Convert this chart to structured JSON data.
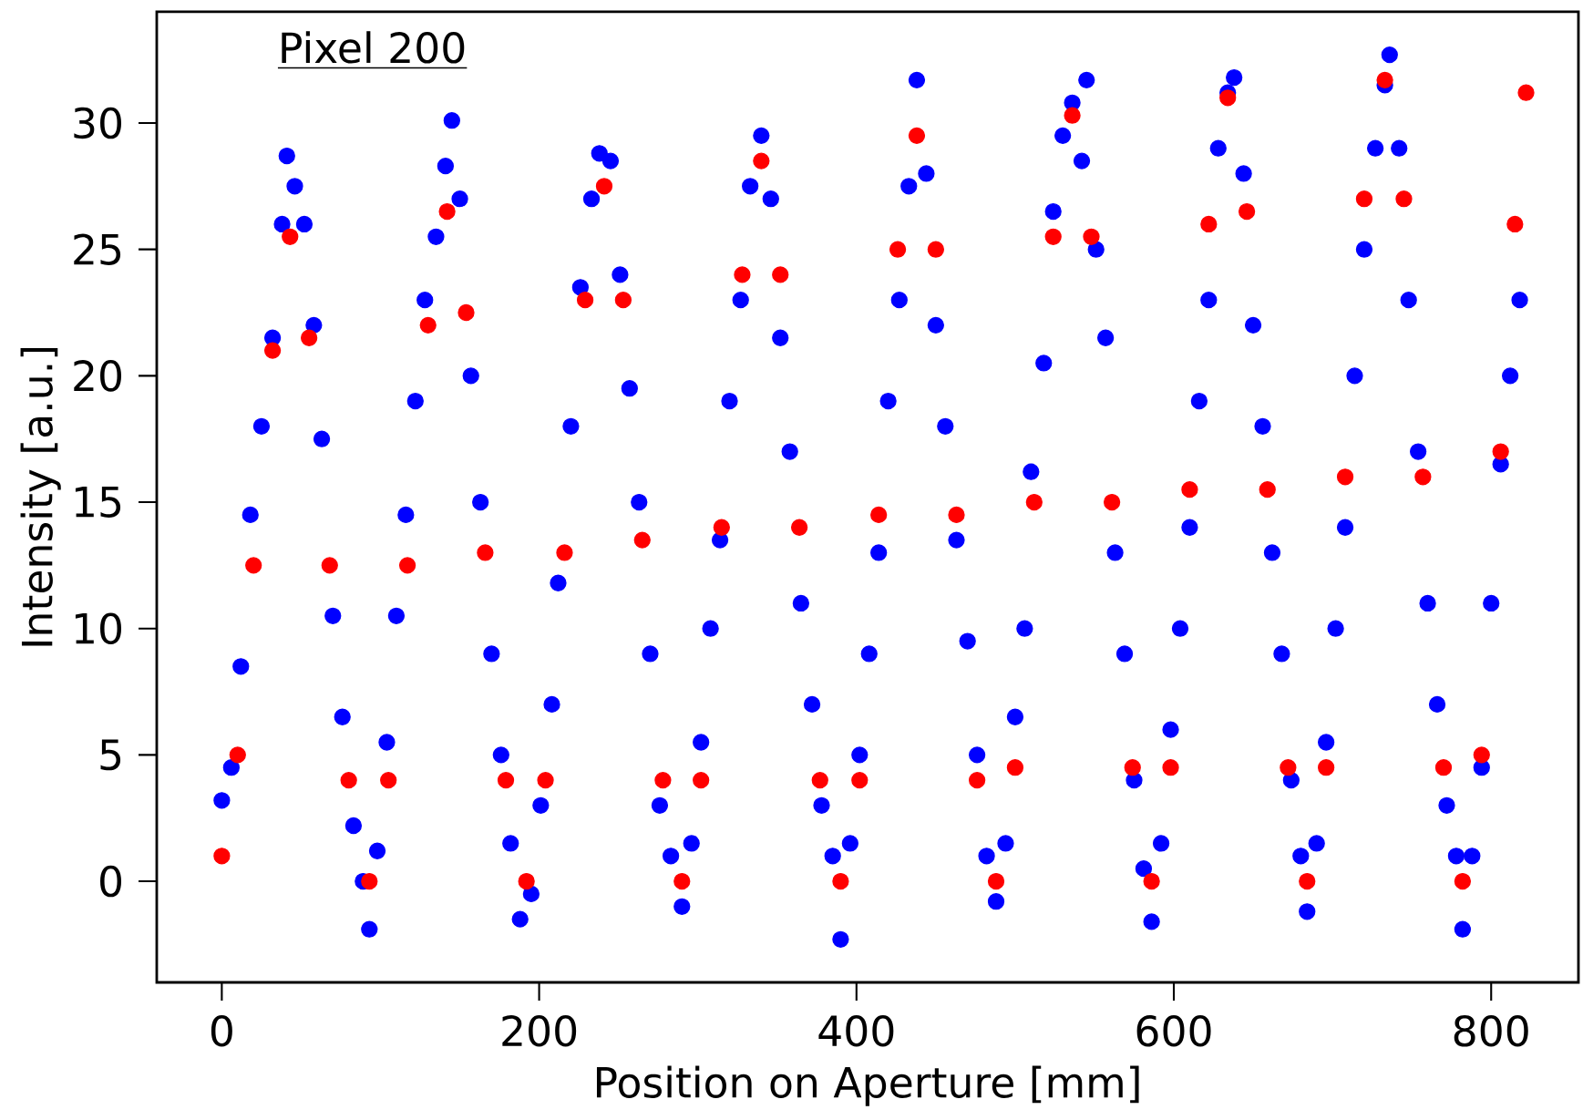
{
  "chart_data": {
    "type": "scatter",
    "xlabel": "Position on Aperture [mm]",
    "ylabel": "Intensity [a.u.]",
    "annotations": [
      "Pixel 200"
    ],
    "xlim": [
      -41,
      855
    ],
    "ylim": [
      -4,
      34.4
    ],
    "xticks": [
      0,
      200,
      400,
      600,
      800
    ],
    "yticks": [
      0,
      5,
      10,
      15,
      20,
      25,
      30
    ],
    "marker": "circle",
    "series": [
      {
        "color": "#0000ff",
        "x": [
          0,
          6,
          12,
          18,
          25,
          32,
          38,
          41,
          46,
          52,
          58,
          63,
          70,
          76,
          83,
          89,
          93,
          98,
          104,
          110,
          116,
          122,
          128,
          135,
          141,
          145,
          150,
          157,
          163,
          170,
          176,
          182,
          188,
          195,
          201,
          208,
          212,
          220,
          226,
          233,
          238,
          245,
          251,
          257,
          263,
          270,
          276,
          283,
          290,
          296,
          302,
          308,
          314,
          320,
          327,
          333,
          340,
          346,
          352,
          358,
          365,
          372,
          378,
          385,
          390,
          396,
          402,
          408,
          414,
          420,
          427,
          433,
          438,
          444,
          450,
          456,
          463,
          470,
          476,
          482,
          488,
          494,
          500,
          506,
          510,
          518,
          524,
          530,
          536,
          542,
          545,
          551,
          557,
          563,
          569,
          575,
          581,
          586,
          592,
          598,
          604,
          610,
          616,
          622,
          628,
          634,
          638,
          644,
          650,
          656,
          662,
          668,
          674,
          680,
          684,
          690,
          696,
          702,
          708,
          714,
          720,
          727,
          733,
          736,
          742,
          748,
          754,
          760,
          766,
          772,
          778,
          782,
          788,
          794,
          800,
          806,
          812,
          818
        ],
        "values": [
          3.2,
          4.5,
          8.5,
          14.5,
          18,
          21.5,
          26,
          28.7,
          27.5,
          26,
          22,
          17.5,
          10.5,
          6.5,
          2.2,
          0,
          -1.9,
          1.2,
          5.5,
          10.5,
          14.5,
          19,
          23,
          25.5,
          28.3,
          30.1,
          27,
          20,
          15,
          9,
          5,
          1.5,
          -1.5,
          -0.5,
          3,
          7,
          11.8,
          18,
          23.5,
          27,
          28.8,
          28.5,
          24,
          19.5,
          15,
          9,
          3,
          1,
          -1,
          1.5,
          5.5,
          10,
          13.5,
          19,
          23,
          27.5,
          29.5,
          27,
          21.5,
          17,
          11,
          7,
          3,
          1,
          -2.3,
          1.5,
          5,
          9,
          13,
          19,
          23,
          27.5,
          31.7,
          28,
          22,
          18,
          13.5,
          9.5,
          5,
          1,
          -0.8,
          1.5,
          6.5,
          10,
          16.2,
          20.5,
          26.5,
          29.5,
          30.8,
          28.5,
          31.7,
          25,
          21.5,
          13,
          9,
          4,
          0.5,
          -1.6,
          1.5,
          6,
          10,
          14,
          19,
          23,
          29,
          31.2,
          31.8,
          28,
          22,
          18,
          13,
          9,
          4,
          1,
          -1.2,
          1.5,
          5.5,
          10,
          14,
          20,
          25,
          29,
          31.5,
          32.7,
          29,
          23,
          17,
          11,
          7,
          3,
          1,
          -1.9,
          1,
          4.5,
          11,
          16.5,
          20,
          23
        ]
      },
      {
        "color": "#ff0000",
        "x": [
          0,
          10,
          20,
          32,
          43,
          55,
          68,
          80,
          93,
          105,
          117,
          130,
          142,
          154,
          166,
          179,
          192,
          204,
          216,
          229,
          241,
          253,
          265,
          278,
          290,
          302,
          315,
          328,
          340,
          352,
          364,
          377,
          390,
          402,
          414,
          426,
          438,
          450,
          463,
          476,
          488,
          500,
          512,
          524,
          536,
          548,
          561,
          574,
          586,
          598,
          610,
          622,
          634,
          646,
          659,
          672,
          684,
          696,
          708,
          720,
          733,
          745,
          757,
          770,
          782,
          794,
          806,
          815,
          822
        ],
        "values": [
          1.0,
          5,
          12.5,
          21,
          25.5,
          21.5,
          12.5,
          4,
          0,
          4,
          12.5,
          22,
          26.5,
          22.5,
          13,
          4,
          0,
          4,
          13,
          23,
          27.5,
          23,
          13.5,
          4,
          0,
          4,
          14,
          24,
          28.5,
          24,
          14,
          4,
          0,
          4,
          14.5,
          25,
          29.5,
          25,
          14.5,
          4,
          0,
          4.5,
          15,
          25.5,
          30.3,
          25.5,
          15,
          4.5,
          0,
          4.5,
          15.5,
          26,
          31,
          26.5,
          15.5,
          4.5,
          0,
          4.5,
          16,
          27,
          31.7,
          27,
          16,
          4.5,
          0,
          5,
          17,
          26,
          31.2
        ]
      }
    ]
  }
}
